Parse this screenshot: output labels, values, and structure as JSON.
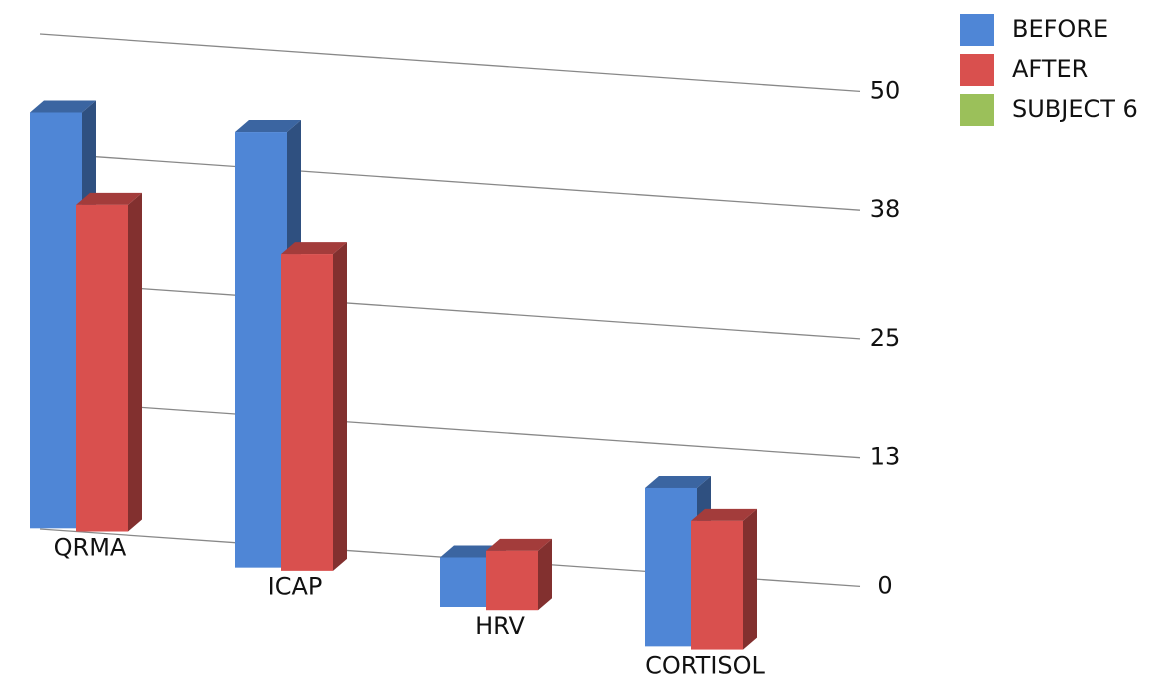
{
  "chart_data": {
    "type": "bar",
    "categories": [
      "QRMA",
      "ICAP",
      "HRV",
      "CORTISOL"
    ],
    "series": [
      {
        "name": "BEFORE",
        "color": "#4f86d6",
        "values": [
          42,
          44,
          5,
          16
        ]
      },
      {
        "name": "AFTER",
        "color": "#d9504e",
        "values": [
          33,
          32,
          6,
          13
        ]
      },
      {
        "name": "SUBJECT 6",
        "color": "#9bc05a",
        "values": [
          null,
          null,
          null,
          null
        ]
      }
    ],
    "ylim": [
      0,
      50
    ],
    "yticks": [
      0,
      13,
      25,
      38,
      50
    ],
    "grid": true,
    "legend": "top-right"
  }
}
